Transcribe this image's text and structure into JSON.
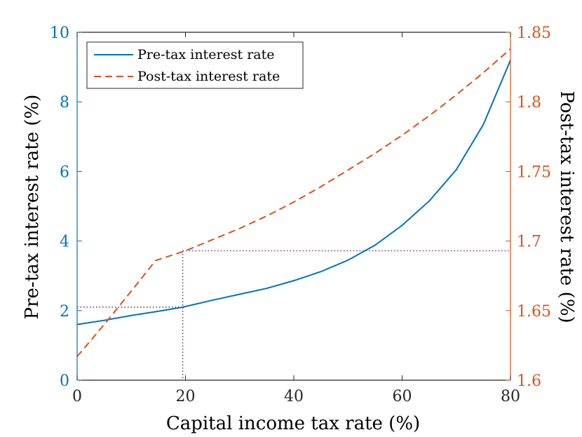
{
  "colors": {
    "left_axis": "#0072BD",
    "right_axis": "#D95319",
    "guide": "#7E2F8E",
    "frame": "#262626"
  },
  "chart_data": {
    "type": "line",
    "title": "",
    "xlabel": "Capital income tax rate (%)",
    "ylabel_left": "Pre-tax interest rate (%)",
    "ylabel_right": "Post-tax interest rate (%)",
    "xlim": [
      0,
      80
    ],
    "ylim_left": [
      0,
      10
    ],
    "ylim_right": [
      1.6,
      1.85
    ],
    "xticks": [
      "0",
      "20",
      "40",
      "60",
      "80"
    ],
    "yticks_left": [
      "0",
      "2",
      "4",
      "6",
      "8",
      "10"
    ],
    "yticks_right": [
      "1.6",
      "1.65",
      "1.7",
      "1.75",
      "1.8",
      "1.85"
    ],
    "grid": false,
    "legend_position": "top-left",
    "series": [
      {
        "name": "Pre-tax interest rate",
        "axis": "left",
        "style": "solid",
        "x": [
          0,
          5,
          10,
          15,
          19.5,
          25,
          30,
          35,
          40,
          45,
          50,
          55,
          60,
          65,
          70,
          75,
          80
        ],
        "values": [
          1.6,
          1.72,
          1.86,
          1.98,
          2.1,
          2.3,
          2.47,
          2.64,
          2.86,
          3.12,
          3.45,
          3.88,
          4.45,
          5.15,
          6.05,
          7.35,
          9.2
        ]
      },
      {
        "name": "Post-tax interest rate",
        "axis": "right",
        "style": "dashed",
        "x": [
          0,
          5,
          10,
          14.5,
          20,
          25,
          30,
          35,
          40,
          45,
          50,
          55,
          60,
          65,
          70,
          75,
          80
        ],
        "values": [
          1.617,
          1.64,
          1.664,
          1.686,
          1.693,
          1.701,
          1.709,
          1.718,
          1.728,
          1.739,
          1.751,
          1.763,
          1.776,
          1.79,
          1.805,
          1.821,
          1.838
        ]
      }
    ],
    "reference_lines": [
      {
        "x": 19.5,
        "y_left": 2.1,
        "y_right": 1.693
      }
    ]
  }
}
